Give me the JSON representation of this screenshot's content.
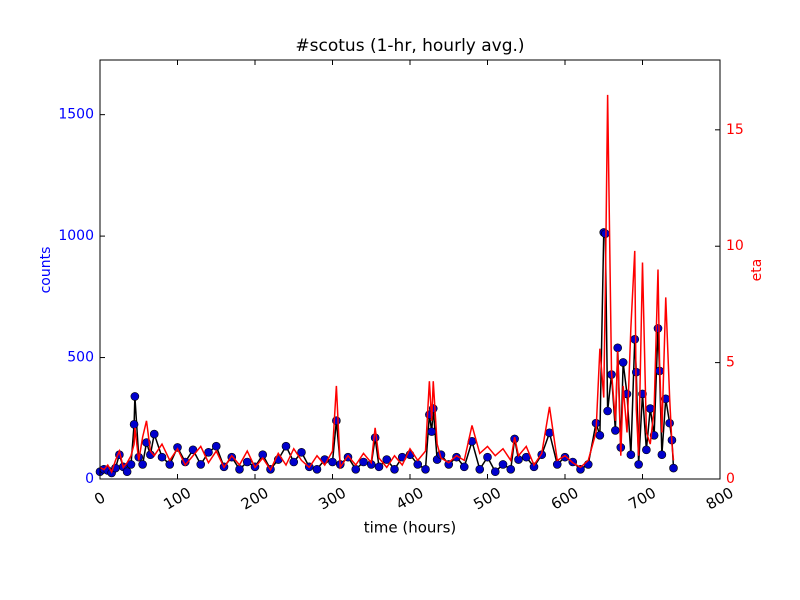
{
  "chart_data": {
    "type": "line",
    "title": "#scotus (1-hr, hourly avg.)",
    "xlabel": "time (hours)",
    "ylabel": "counts",
    "y2label": "eta",
    "xlim": [
      0,
      800
    ],
    "xticks": [
      0,
      100,
      200,
      300,
      400,
      500,
      600,
      700,
      800
    ],
    "ylim": [
      0,
      1725
    ],
    "yticks": [
      0,
      500,
      1000,
      1500
    ],
    "y2lim": [
      0,
      18
    ],
    "y2ticks": [
      0,
      5,
      10,
      15
    ],
    "ycolor": "#0000ff",
    "y2color": "#ff0000",
    "x": [
      0,
      5,
      10,
      15,
      20,
      25,
      30,
      35,
      40,
      44,
      45,
      50,
      55,
      60,
      65,
      70,
      80,
      90,
      100,
      110,
      120,
      130,
      140,
      150,
      160,
      170,
      180,
      190,
      200,
      210,
      220,
      230,
      240,
      250,
      260,
      270,
      280,
      290,
      300,
      305,
      310,
      320,
      330,
      340,
      350,
      355,
      360,
      370,
      380,
      390,
      400,
      410,
      420,
      425,
      428,
      430,
      435,
      440,
      450,
      460,
      470,
      480,
      490,
      500,
      510,
      520,
      530,
      535,
      540,
      550,
      560,
      570,
      580,
      590,
      600,
      610,
      620,
      630,
      640,
      645,
      650,
      652,
      655,
      660,
      665,
      668,
      672,
      675,
      680,
      685,
      690,
      692,
      695,
      700,
      705,
      710,
      715,
      720,
      722,
      725,
      730,
      735,
      738,
      740
    ],
    "series": [
      {
        "color": "#000000",
        "marker_color": "#0000cc",
        "axis": "y",
        "values": [
          30,
          40,
          35,
          25,
          45,
          100,
          50,
          30,
          60,
          225,
          340,
          90,
          60,
          150,
          100,
          185,
          90,
          60,
          130,
          70,
          120,
          60,
          110,
          135,
          50,
          90,
          40,
          70,
          50,
          100,
          40,
          80,
          135,
          70,
          110,
          50,
          40,
          80,
          70,
          240,
          60,
          90,
          40,
          70,
          60,
          170,
          50,
          80,
          40,
          90,
          100,
          60,
          40,
          265,
          195,
          290,
          80,
          100,
          60,
          90,
          50,
          155,
          40,
          90,
          30,
          60,
          40,
          165,
          80,
          90,
          50,
          100,
          190,
          60,
          90,
          70,
          40,
          60,
          230,
          180,
          1015,
          1010,
          280,
          430,
          200,
          540,
          130,
          480,
          350,
          100,
          575,
          440,
          60,
          350,
          120,
          290,
          180,
          620,
          445,
          100,
          330,
          230,
          160,
          45
        ]
      },
      {
        "color": "#ff0000",
        "axis": "y2",
        "values": [
          0.5,
          0.4,
          0.6,
          0.3,
          0.8,
          1.2,
          0.5,
          0.7,
          1.0,
          1.5,
          2.2,
          0.8,
          1.8,
          2.5,
          1.2,
          1.0,
          1.5,
          0.8,
          1.3,
          0.6,
          1.0,
          1.4,
          0.7,
          1.2,
          0.5,
          1.0,
          0.6,
          1.2,
          0.5,
          0.9,
          0.4,
          1.1,
          0.6,
          1.3,
          0.8,
          0.5,
          1.0,
          0.6,
          1.2,
          4.0,
          0.5,
          1.0,
          0.6,
          1.1,
          0.7,
          2.2,
          0.9,
          0.5,
          1.0,
          0.6,
          1.3,
          0.8,
          1.2,
          4.2,
          2.5,
          4.2,
          1.5,
          0.9,
          0.7,
          1.0,
          0.8,
          2.3,
          1.1,
          1.4,
          1.0,
          1.3,
          0.8,
          1.8,
          1.0,
          1.4,
          0.6,
          1.1,
          3.1,
          0.8,
          1.0,
          0.7,
          0.5,
          0.8,
          2.0,
          5.6,
          3.5,
          8.0,
          16.5,
          4.6,
          2.5,
          5.5,
          1.0,
          4.0,
          2.0,
          6.5,
          9.8,
          3.0,
          1.0,
          9.3,
          2.0,
          1.5,
          3.0,
          9.0,
          5.0,
          2.0,
          7.8,
          3.5,
          1.5,
          0.8
        ]
      }
    ]
  }
}
